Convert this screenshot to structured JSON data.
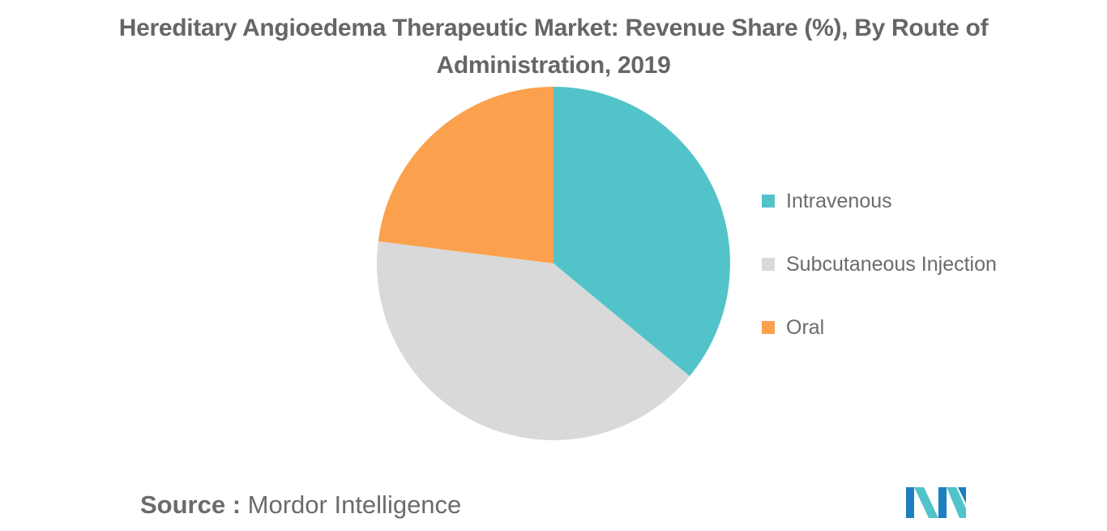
{
  "chart_data": {
    "type": "pie",
    "title": "Hereditary Angioedema Therapeutic Market: Revenue Share (%), By Route of Administration, 2019",
    "title_lines": [
      "Hereditary Angioedema Therapeutic Market: Revenue Share (%), By Route of",
      "Administration, 2019"
    ],
    "categories": [
      "Intravenous",
      "Subcutaneous Injection",
      "Oral"
    ],
    "values": [
      36,
      41,
      23
    ],
    "colors": [
      "#52c4c9",
      "#d9d9d9",
      "#fba14d"
    ],
    "legend_position": "right",
    "start_angle_deg": 0,
    "direction": "clockwise"
  },
  "source": {
    "label": "Source :",
    "text": "Mordor Intelligence"
  },
  "logo": {
    "icon": "mordor-intelligence-logo",
    "colors": [
      "#1d7fc0",
      "#52c4c9"
    ]
  }
}
